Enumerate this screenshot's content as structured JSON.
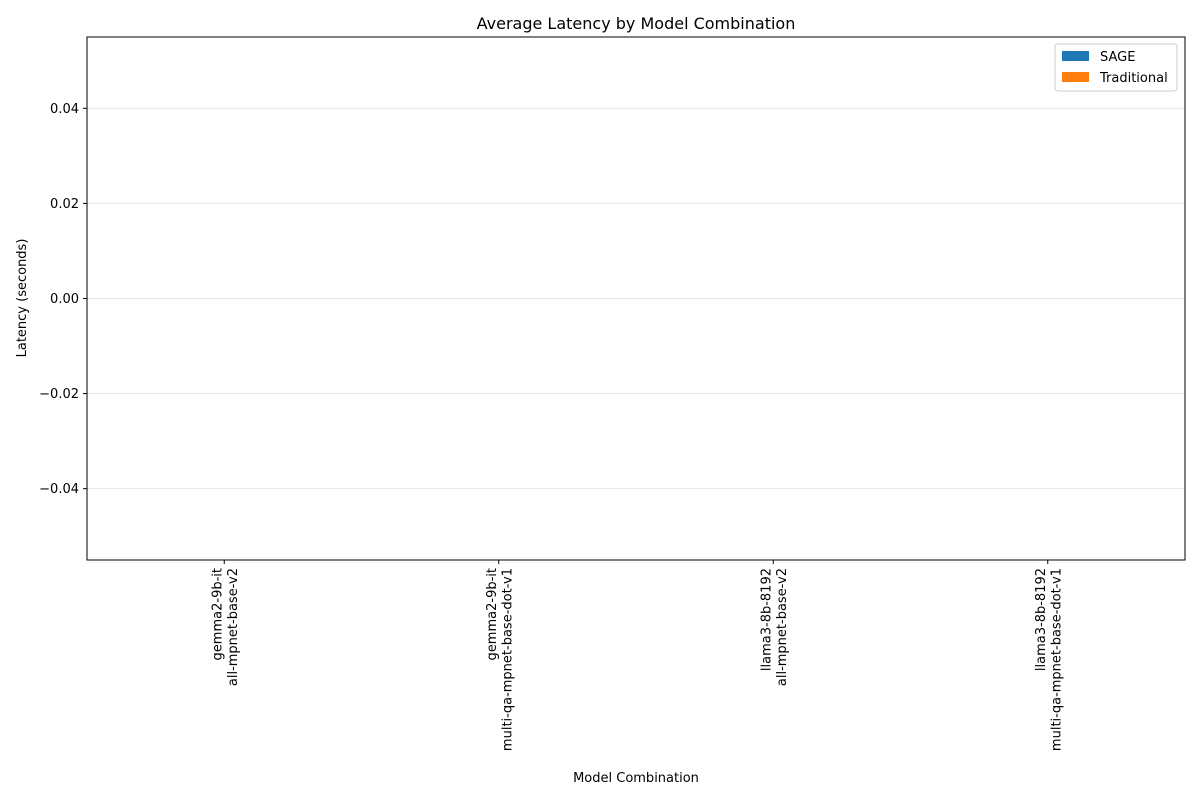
{
  "chart_data": {
    "type": "bar",
    "title": "Average Latency by Model Combination",
    "xlabel": "Model Combination",
    "ylabel": "Latency (seconds)",
    "categories": [
      [
        "gemma2-9b-it",
        "all-mpnet-base-v2"
      ],
      [
        "gemma2-9b-it",
        "multi-qa-mpnet-base-dot-v1"
      ],
      [
        "llama3-8b-8192",
        "all-mpnet-base-v2"
      ],
      [
        "llama3-8b-8192",
        "multi-qa-mpnet-base-dot-v1"
      ]
    ],
    "series": [
      {
        "name": "SAGE",
        "color": "#1f77b4",
        "values": [
          0,
          0,
          0,
          0
        ]
      },
      {
        "name": "Traditional",
        "color": "#ff7f0e",
        "values": [
          0,
          0,
          0,
          0
        ]
      }
    ],
    "ylim": [
      -0.055,
      0.055
    ],
    "yticks": [
      -0.04,
      -0.02,
      0.0,
      0.02,
      0.04
    ],
    "ytick_labels": [
      "−0.04",
      "−0.02",
      "0.00",
      "0.02",
      "0.04"
    ],
    "grid": "y",
    "legend_position": "top-right"
  }
}
